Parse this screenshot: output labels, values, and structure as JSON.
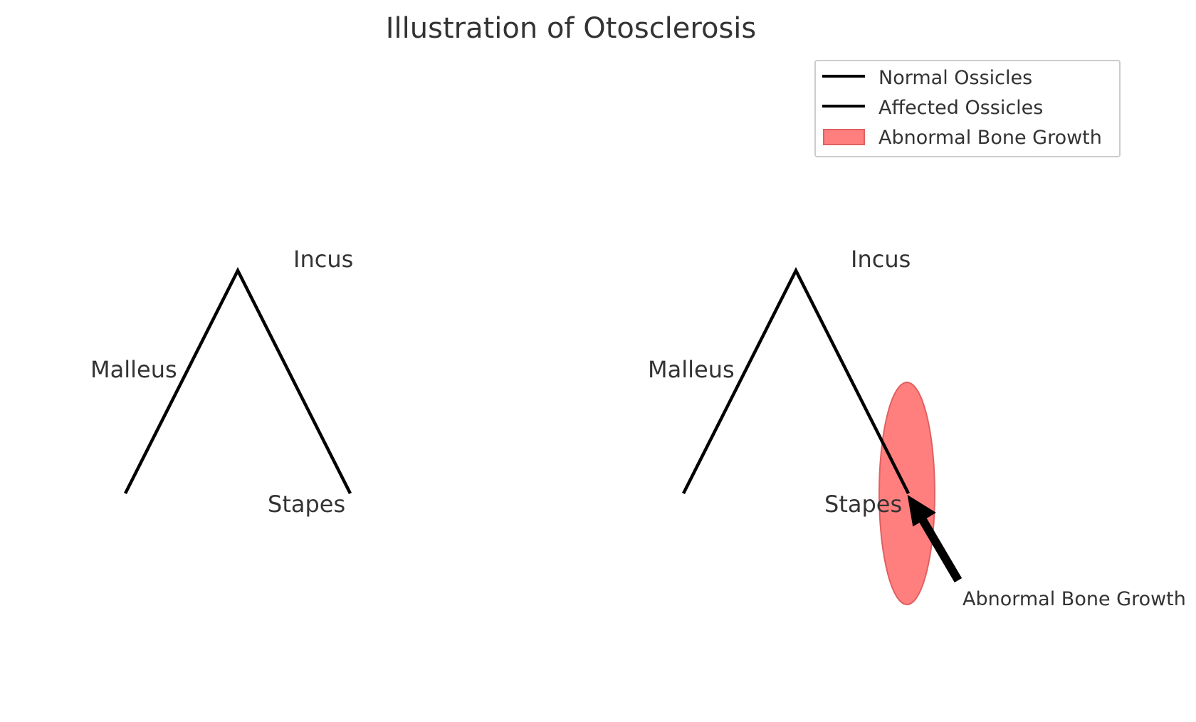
{
  "title": "Illustration of Otosclerosis",
  "legend": {
    "items": [
      {
        "label": "Normal Ossicles",
        "swatch": "line",
        "color": "#000000"
      },
      {
        "label": "Affected Ossicles",
        "swatch": "line",
        "color": "#000000"
      },
      {
        "label": "Abnormal Bone Growth",
        "swatch": "patch",
        "color": "#ff7f7f"
      }
    ]
  },
  "panels": {
    "normal": {
      "labels": {
        "malleus": "Malleus",
        "incus": "Incus",
        "stapes": "Stapes"
      }
    },
    "affected": {
      "labels": {
        "malleus": "Malleus",
        "incus": "Incus",
        "stapes": "Stapes"
      },
      "annotation": "Abnormal Bone Growth"
    }
  },
  "colors": {
    "text": "#333333",
    "ossicle_line": "#000000",
    "growth_fill": "#ff7f7f",
    "growth_edge": "#e06060",
    "legend_border": "#cccccc"
  }
}
